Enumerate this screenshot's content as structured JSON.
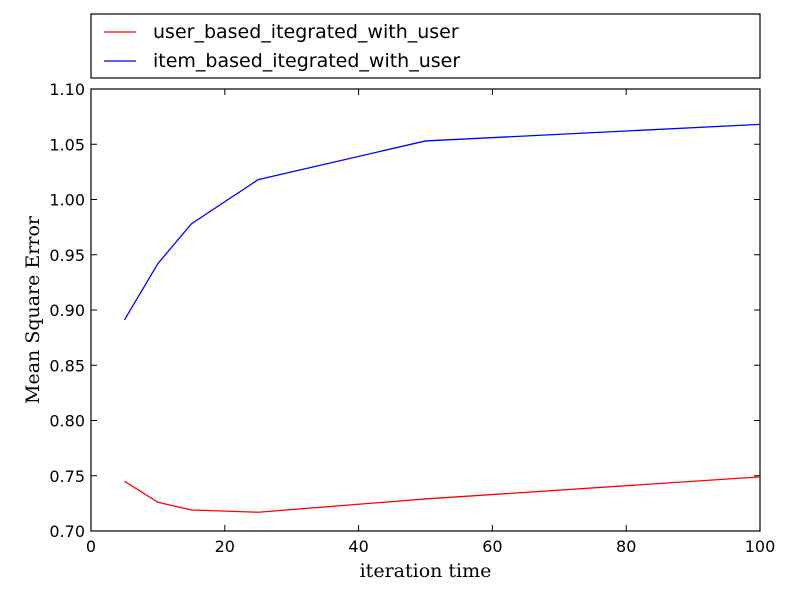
{
  "chart_data": {
    "type": "line",
    "xlabel": "iteration time",
    "ylabel": "Mean Square Error",
    "xlim": [
      0,
      100
    ],
    "ylim": [
      0.7,
      1.1
    ],
    "x_ticks": [
      "0",
      "20",
      "40",
      "60",
      "80",
      "100"
    ],
    "y_ticks": [
      "0.70",
      "0.75",
      "0.80",
      "0.85",
      "0.90",
      "0.95",
      "1.00",
      "1.05",
      "1.10"
    ],
    "grid": false,
    "legend_position": "top, outside plot",
    "series": [
      {
        "name": "user_based_itegrated_with_user",
        "color": "#ff0000",
        "x": [
          5,
          10,
          15,
          25,
          50,
          100
        ],
        "values": [
          0.745,
          0.726,
          0.719,
          0.717,
          0.729,
          0.749
        ]
      },
      {
        "name": "item_based_itegrated_with_user",
        "color": "#0000ff",
        "x": [
          5,
          10,
          15,
          25,
          50,
          100
        ],
        "values": [
          0.891,
          0.942,
          0.978,
          1.018,
          1.053,
          1.068
        ]
      }
    ]
  }
}
